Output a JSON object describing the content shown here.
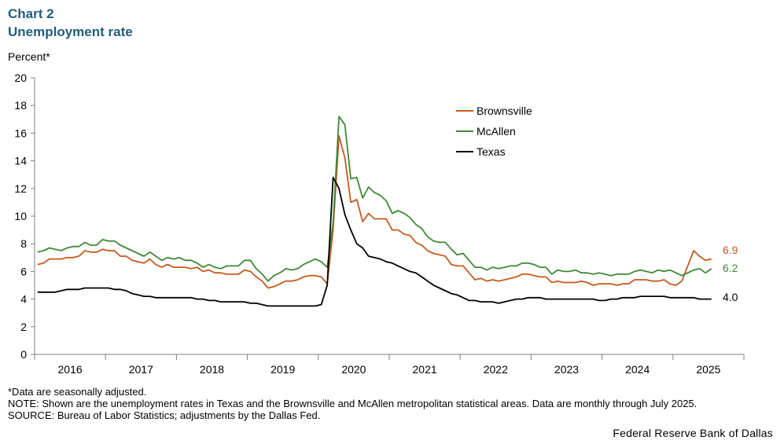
{
  "header": {
    "chart_number": "Chart 2",
    "title": "Unemployment rate",
    "y_unit": "Percent*"
  },
  "notes": {
    "asterisk": "*Data are seasonally adjusted.",
    "note": "NOTE: Shown are the unemployment rates in Texas and the Brownsville and McAllen metropolitan statistical areas. Data are monthly through July 2025.",
    "source": "SOURCE: Bureau of Labor Statistics; adjustments by the Dallas Fed."
  },
  "footer": {
    "organization": "Federal Reserve Bank of Dallas"
  },
  "chart_data": {
    "type": "line",
    "title": "Unemployment rate",
    "ylabel": "Percent*",
    "ylim": [
      0,
      20
    ],
    "yticks": [
      0,
      2,
      4,
      6,
      8,
      10,
      12,
      14,
      16,
      18,
      20
    ],
    "x_start": "2016-01",
    "x_end": "2025-07",
    "year_labels": [
      "2016",
      "2017",
      "2018",
      "2019",
      "2020",
      "2021",
      "2022",
      "2023",
      "2024",
      "2025"
    ],
    "grid": false,
    "legend_position": "top-right",
    "end_labels": {
      "Brownsville": "6.9",
      "McAllen": "6.2",
      "Texas": "4.0"
    },
    "series": [
      {
        "name": "Brownsville",
        "color": "#c55a1f",
        "values": [
          6.5,
          6.6,
          6.9,
          6.9,
          6.9,
          7.0,
          7.0,
          7.1,
          7.5,
          7.4,
          7.4,
          7.6,
          7.5,
          7.5,
          7.1,
          7.1,
          6.8,
          6.7,
          6.6,
          6.9,
          6.5,
          6.3,
          6.5,
          6.3,
          6.3,
          6.3,
          6.2,
          6.3,
          6.0,
          6.1,
          5.9,
          5.9,
          5.8,
          5.8,
          5.8,
          6.1,
          6.0,
          5.6,
          5.3,
          4.8,
          4.9,
          5.1,
          5.3,
          5.3,
          5.4,
          5.6,
          5.7,
          5.7,
          5.6,
          5.1,
          9.0,
          15.8,
          14.2,
          11.0,
          11.2,
          9.6,
          10.2,
          9.8,
          9.8,
          9.8,
          9.0,
          9.0,
          8.7,
          8.6,
          8.1,
          7.9,
          7.5,
          7.3,
          7.2,
          7.1,
          6.5,
          6.4,
          6.4,
          5.9,
          5.4,
          5.5,
          5.3,
          5.4,
          5.3,
          5.4,
          5.5,
          5.6,
          5.8,
          5.8,
          5.7,
          5.6,
          5.6,
          5.2,
          5.3,
          5.2,
          5.2,
          5.2,
          5.3,
          5.2,
          5.0,
          5.1,
          5.1,
          5.1,
          5.0,
          5.1,
          5.1,
          5.4,
          5.4,
          5.4,
          5.3,
          5.3,
          5.4,
          5.1,
          5.0,
          5.3,
          6.4,
          7.5,
          7.1,
          6.8,
          6.9
        ]
      },
      {
        "name": "McAllen",
        "color": "#3f8a34",
        "values": [
          7.4,
          7.5,
          7.7,
          7.6,
          7.5,
          7.7,
          7.8,
          7.8,
          8.1,
          7.9,
          7.9,
          8.3,
          8.2,
          8.2,
          7.9,
          7.7,
          7.5,
          7.3,
          7.1,
          7.4,
          7.1,
          6.8,
          7.0,
          6.9,
          7.0,
          6.8,
          6.8,
          6.6,
          6.3,
          6.5,
          6.3,
          6.2,
          6.4,
          6.4,
          6.4,
          6.8,
          6.8,
          6.2,
          5.8,
          5.3,
          5.7,
          5.9,
          6.2,
          6.1,
          6.2,
          6.5,
          6.7,
          6.9,
          6.7,
          6.3,
          9.5,
          17.2,
          16.6,
          12.7,
          12.8,
          11.3,
          12.1,
          11.7,
          11.5,
          11.1,
          10.2,
          10.4,
          10.2,
          9.9,
          9.4,
          9.1,
          8.5,
          8.2,
          8.1,
          8.1,
          7.6,
          7.2,
          7.3,
          6.8,
          6.3,
          6.3,
          6.1,
          6.3,
          6.2,
          6.3,
          6.4,
          6.4,
          6.6,
          6.6,
          6.5,
          6.3,
          6.3,
          5.8,
          6.1,
          6.0,
          6.0,
          6.1,
          5.9,
          5.9,
          5.8,
          5.9,
          5.8,
          5.7,
          5.8,
          5.8,
          5.8,
          6.0,
          6.1,
          6.0,
          5.9,
          6.1,
          6.0,
          6.1,
          5.9,
          5.7,
          5.9,
          6.1,
          6.2,
          5.9,
          6.2
        ]
      },
      {
        "name": "Texas",
        "color": "#000000",
        "values": [
          4.5,
          4.5,
          4.5,
          4.5,
          4.6,
          4.7,
          4.7,
          4.7,
          4.8,
          4.8,
          4.8,
          4.8,
          4.8,
          4.7,
          4.7,
          4.6,
          4.4,
          4.3,
          4.2,
          4.2,
          4.1,
          4.1,
          4.1,
          4.1,
          4.1,
          4.1,
          4.1,
          4.0,
          4.0,
          3.9,
          3.9,
          3.8,
          3.8,
          3.8,
          3.8,
          3.8,
          3.7,
          3.7,
          3.6,
          3.5,
          3.5,
          3.5,
          3.5,
          3.5,
          3.5,
          3.5,
          3.5,
          3.5,
          3.6,
          5.0,
          12.8,
          12.0,
          10.1,
          9.0,
          8.0,
          7.7,
          7.1,
          7.0,
          6.9,
          6.7,
          6.6,
          6.4,
          6.2,
          6.0,
          5.9,
          5.6,
          5.3,
          5.0,
          4.8,
          4.6,
          4.4,
          4.3,
          4.1,
          3.9,
          3.9,
          3.8,
          3.8,
          3.8,
          3.7,
          3.8,
          3.9,
          4.0,
          4.0,
          4.1,
          4.1,
          4.1,
          4.0,
          4.0,
          4.0,
          4.0,
          4.0,
          4.0,
          4.0,
          4.0,
          4.0,
          3.9,
          3.9,
          4.0,
          4.0,
          4.1,
          4.1,
          4.1,
          4.2,
          4.2,
          4.2,
          4.2,
          4.2,
          4.1,
          4.1,
          4.1,
          4.1,
          4.1,
          4.0,
          4.0,
          4.0
        ]
      }
    ]
  }
}
